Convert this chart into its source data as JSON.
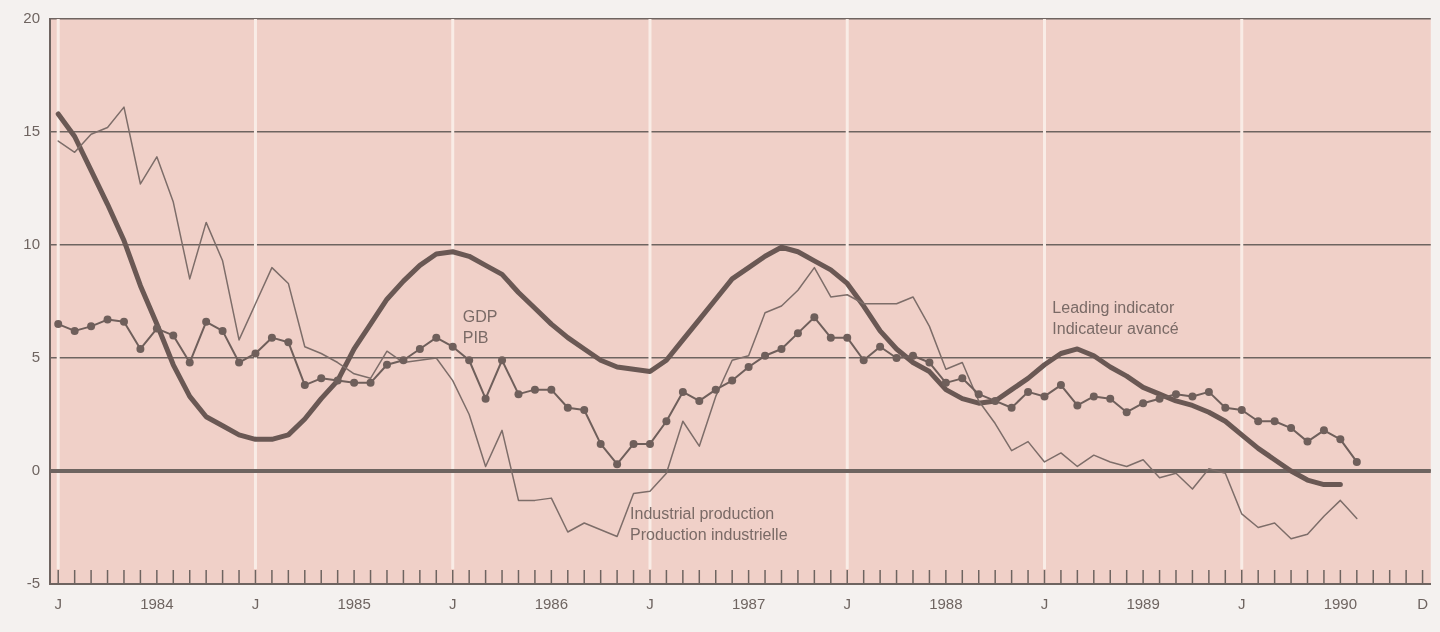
{
  "chart_data": {
    "type": "line",
    "categories": [
      "J",
      null,
      null,
      null,
      null,
      null,
      "1984",
      null,
      null,
      null,
      null,
      null,
      "J",
      null,
      null,
      null,
      null,
      null,
      "1985",
      null,
      null,
      null,
      null,
      null,
      "J",
      null,
      null,
      null,
      null,
      null,
      "1986",
      null,
      null,
      null,
      null,
      null,
      "J",
      null,
      null,
      null,
      null,
      null,
      "1987",
      null,
      null,
      null,
      null,
      null,
      "J",
      null,
      null,
      null,
      null,
      null,
      "1988",
      null,
      null,
      null,
      null,
      null,
      "J",
      null,
      null,
      null,
      null,
      null,
      "1989",
      null,
      null,
      null,
      null,
      null,
      "J",
      null,
      null,
      null,
      null,
      null,
      "1990",
      null,
      null,
      null,
      null,
      "D"
    ],
    "series": [
      {
        "name": "GDP\nPIB",
        "color": "#6f5f5b",
        "marker": "circle",
        "values": [
          6.5,
          6.2,
          6.4,
          6.7,
          6.6,
          5.4,
          6.3,
          6.0,
          4.8,
          6.6,
          6.2,
          4.8,
          5.2,
          5.9,
          5.7,
          3.8,
          4.1,
          4.0,
          3.9,
          3.9,
          4.7,
          4.9,
          5.4,
          5.9,
          5.5,
          4.9,
          3.2,
          4.9,
          3.4,
          3.6,
          3.6,
          2.8,
          2.7,
          1.2,
          0.3,
          1.2,
          1.2,
          2.2,
          3.5,
          3.1,
          3.6,
          4.0,
          4.6,
          5.1,
          5.4,
          6.1,
          6.8,
          5.9,
          5.9,
          4.9,
          5.5,
          5.0,
          5.1,
          4.8,
          3.9,
          4.1,
          3.4,
          3.1,
          2.8,
          3.5,
          3.3,
          3.8,
          2.9,
          3.3,
          3.2,
          2.6,
          3.0,
          3.2,
          3.4,
          3.3,
          3.5,
          2.8,
          2.7,
          2.2,
          2.2,
          1.9,
          1.3,
          1.8,
          1.4,
          0.4,
          null,
          null,
          null,
          null
        ]
      },
      {
        "name": "Industrial production\nProduction industrielle",
        "color": "#7d6d69",
        "marker": "none",
        "values": [
          14.6,
          14.1,
          14.9,
          15.2,
          16.1,
          12.7,
          13.9,
          11.9,
          8.5,
          11.0,
          9.3,
          5.8,
          7.4,
          9.0,
          8.3,
          5.5,
          5.2,
          4.8,
          4.3,
          4.1,
          5.3,
          4.8,
          4.9,
          5.0,
          4.0,
          2.5,
          0.2,
          1.8,
          -1.3,
          -1.3,
          -1.2,
          -2.7,
          -2.3,
          -2.6,
          -2.9,
          -1.0,
          -0.9,
          -0.1,
          2.2,
          1.1,
          3.3,
          4.9,
          5.1,
          7.0,
          7.3,
          8.0,
          9.0,
          7.7,
          7.8,
          7.4,
          7.4,
          7.4,
          7.7,
          6.4,
          4.5,
          4.8,
          3.1,
          2.1,
          0.9,
          1.3,
          0.4,
          0.8,
          0.2,
          0.7,
          0.4,
          0.2,
          0.5,
          -0.3,
          -0.1,
          -0.8,
          0.1,
          -0.1,
          -1.9,
          -2.5,
          -2.3,
          -3.0,
          -2.8,
          -2.0,
          -1.3,
          -2.1,
          null,
          null,
          null,
          null
        ]
      },
      {
        "name": "Leading indicator\nIndicateur avancé",
        "color": "#6a5854",
        "marker": "none",
        "values": [
          15.8,
          14.8,
          13.3,
          11.8,
          10.2,
          8.2,
          6.5,
          4.7,
          3.3,
          2.4,
          2.0,
          1.6,
          1.4,
          1.4,
          1.6,
          2.3,
          3.2,
          4.0,
          5.4,
          6.5,
          7.6,
          8.4,
          9.1,
          9.6,
          9.7,
          9.5,
          9.1,
          8.7,
          7.9,
          7.2,
          6.5,
          5.9,
          5.4,
          4.9,
          4.6,
          4.5,
          4.4,
          4.9,
          5.8,
          6.7,
          7.6,
          8.5,
          9.0,
          9.5,
          9.9,
          9.7,
          9.3,
          8.9,
          8.3,
          7.3,
          6.2,
          5.4,
          4.8,
          4.4,
          3.6,
          3.2,
          3.0,
          3.1,
          3.6,
          4.1,
          4.7,
          5.2,
          5.4,
          5.1,
          4.6,
          4.2,
          3.7,
          3.4,
          3.1,
          2.9,
          2.6,
          2.2,
          1.6,
          1.0,
          0.5,
          0.0,
          -0.4,
          -0.6,
          -0.6,
          null,
          null,
          null,
          null,
          null
        ]
      }
    ],
    "ylim": [
      -5,
      20
    ],
    "yticks": [
      -5,
      0,
      5,
      10,
      15,
      20
    ],
    "grid": true,
    "ref_lines": [
      {
        "axis": "y",
        "value": 0
      }
    ]
  }
}
